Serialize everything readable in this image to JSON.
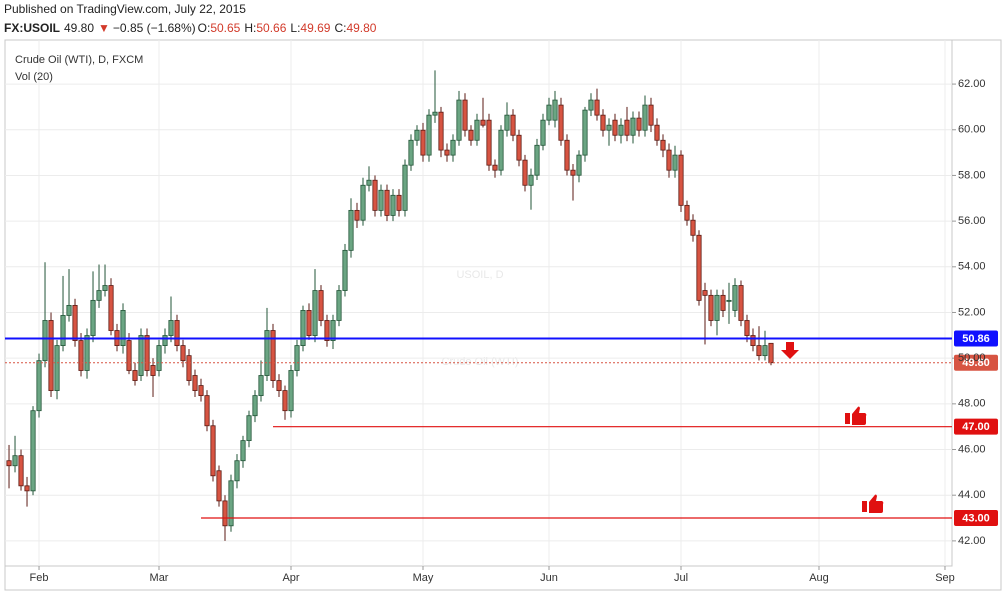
{
  "header": {
    "published": "Published on TradingView.com, July 22, 2015",
    "symbol": "FX:USOIL",
    "last": "49.80",
    "change": "−0.85 (−1.68%)",
    "ohlc": [
      {
        "key": "O:",
        "value": "50.65"
      },
      {
        "key": "H:",
        "value": "50.66"
      },
      {
        "key": "L:",
        "value": "49.69"
      },
      {
        "key": "C:",
        "value": "49.80"
      }
    ]
  },
  "chart_data": {
    "type": "candlestick",
    "title": "Crude Oil (WTI), D, FXCM",
    "subtitle": "Vol (20)",
    "watermark": [
      "USOIL, D",
      "Crude Oil (WTI)"
    ],
    "up_color": "#6ba583",
    "down_color": "#d75442",
    "grid": true,
    "xlim": [
      -0.67,
      157.17
    ],
    "ylim": [
      40.9,
      63.93
    ],
    "xticks": [
      {
        "value": 5,
        "label": "Feb"
      },
      {
        "value": 25,
        "label": "Mar"
      },
      {
        "value": 47,
        "label": "Apr"
      },
      {
        "value": 69,
        "label": "May"
      },
      {
        "value": 90,
        "label": "Jun"
      },
      {
        "value": 112,
        "label": "Jul"
      },
      {
        "value": 135,
        "label": "Aug"
      },
      {
        "value": 156,
        "label": "Sep"
      }
    ],
    "yticks": [
      {
        "value": 42,
        "label": "42.00"
      },
      {
        "value": 44,
        "label": "44.00"
      },
      {
        "value": 46,
        "label": "46.00"
      },
      {
        "value": 48,
        "label": "48.00"
      },
      {
        "value": 50,
        "label": "50.00"
      },
      {
        "value": 52,
        "label": "52.00"
      },
      {
        "value": 54,
        "label": "54.00"
      },
      {
        "value": 56,
        "label": "56.00"
      },
      {
        "value": 58,
        "label": "58.00"
      },
      {
        "value": 60,
        "label": "60.00"
      },
      {
        "value": 62,
        "label": "62.00"
      }
    ],
    "hlines": [
      {
        "value": 50.86,
        "label": "50.86",
        "color": "#1010ff",
        "style": "solid",
        "start": -0.67
      },
      {
        "value": 49.8,
        "label": "49.80",
        "color": "#d75442",
        "style": "dotted",
        "start": -0.67
      },
      {
        "value": 47,
        "label": "47.00",
        "color": "#e01010",
        "style": "solid",
        "start": 44
      },
      {
        "value": 43,
        "label": "43.00",
        "color": "#e01010",
        "style": "solid",
        "start": 32
      }
    ],
    "candles": [
      [
        45.51,
        46.2,
        44.3,
        45.29
      ],
      [
        45.29,
        46.6,
        45.0,
        45.73
      ],
      [
        45.73,
        46.0,
        44.2,
        44.41
      ],
      [
        44.41,
        44.8,
        43.5,
        44.19
      ],
      [
        44.19,
        47.9,
        44.0,
        47.7
      ],
      [
        47.7,
        50.2,
        47.4,
        49.89
      ],
      [
        49.89,
        54.2,
        49.6,
        51.65
      ],
      [
        51.65,
        52.0,
        48.3,
        48.58
      ],
      [
        48.58,
        50.8,
        48.2,
        50.55
      ],
      [
        50.55,
        53.6,
        50.3,
        51.87
      ],
      [
        51.87,
        53.9,
        51.6,
        52.31
      ],
      [
        52.31,
        52.6,
        50.5,
        50.77
      ],
      [
        50.77,
        51.1,
        49.2,
        49.46
      ],
      [
        49.46,
        51.3,
        49.1,
        50.99
      ],
      [
        50.99,
        53.8,
        50.7,
        52.53
      ],
      [
        52.53,
        54.1,
        52.2,
        52.96
      ],
      [
        52.96,
        54.1,
        52.7,
        53.18
      ],
      [
        53.18,
        53.5,
        51.0,
        51.21
      ],
      [
        51.21,
        51.5,
        50.3,
        50.55
      ],
      [
        50.55,
        52.4,
        50.2,
        52.09
      ],
      [
        50.77,
        51.1,
        49.3,
        49.46
      ],
      [
        49.46,
        49.8,
        48.8,
        49.02
      ],
      [
        49.24,
        51.3,
        49.0,
        50.99
      ],
      [
        50.99,
        51.3,
        49.2,
        49.46
      ],
      [
        49.68,
        50.0,
        48.3,
        49.24
      ],
      [
        49.46,
        50.8,
        49.2,
        50.55
      ],
      [
        50.55,
        51.3,
        50.2,
        50.99
      ],
      [
        50.99,
        52.7,
        50.7,
        51.65
      ],
      [
        51.65,
        51.9,
        50.3,
        50.55
      ],
      [
        50.55,
        50.8,
        49.6,
        49.89
      ],
      [
        50.11,
        50.4,
        48.8,
        49.02
      ],
      [
        49.24,
        49.5,
        48.3,
        48.58
      ],
      [
        48.8,
        49.1,
        48.1,
        48.36
      ],
      [
        48.36,
        48.6,
        46.8,
        47.04
      ],
      [
        47.04,
        47.3,
        44.6,
        44.85
      ],
      [
        45.07,
        45.3,
        43.5,
        43.75
      ],
      [
        43.75,
        44.0,
        42.0,
        42.66
      ],
      [
        42.66,
        44.9,
        42.4,
        44.63
      ],
      [
        44.63,
        45.8,
        44.3,
        45.51
      ],
      [
        45.51,
        46.6,
        45.2,
        46.39
      ],
      [
        46.39,
        47.7,
        46.1,
        47.48
      ],
      [
        47.48,
        48.6,
        47.2,
        48.36
      ],
      [
        48.36,
        49.9,
        48.1,
        49.24
      ],
      [
        49.24,
        52.2,
        49.0,
        51.21
      ],
      [
        51.21,
        51.5,
        48.7,
        49.02
      ],
      [
        49.02,
        49.3,
        48.3,
        48.58
      ],
      [
        48.58,
        48.8,
        47.3,
        47.7
      ],
      [
        47.7,
        49.7,
        47.4,
        49.46
      ],
      [
        49.46,
        50.8,
        49.2,
        50.55
      ],
      [
        50.55,
        52.3,
        50.3,
        52.09
      ],
      [
        52.09,
        52.4,
        50.8,
        50.99
      ],
      [
        50.99,
        53.9,
        50.7,
        52.96
      ],
      [
        52.96,
        53.2,
        51.4,
        51.65
      ],
      [
        51.65,
        51.9,
        50.5,
        50.77
      ],
      [
        50.77,
        51.9,
        50.4,
        51.65
      ],
      [
        51.65,
        53.2,
        51.4,
        52.96
      ],
      [
        52.96,
        55.0,
        52.7,
        54.72
      ],
      [
        54.72,
        57.0,
        54.4,
        56.47
      ],
      [
        56.47,
        56.8,
        55.7,
        56.04
      ],
      [
        56.04,
        57.9,
        55.8,
        57.57
      ],
      [
        57.57,
        58.4,
        57.3,
        57.79
      ],
      [
        57.79,
        58.0,
        56.2,
        56.47
      ],
      [
        56.47,
        57.6,
        56.2,
        57.35
      ],
      [
        57.35,
        57.6,
        56.0,
        56.25
      ],
      [
        56.25,
        57.4,
        56.0,
        57.13
      ],
      [
        57.13,
        57.4,
        56.2,
        56.47
      ],
      [
        56.47,
        58.7,
        56.2,
        58.45
      ],
      [
        58.45,
        59.8,
        58.2,
        59.54
      ],
      [
        59.54,
        60.2,
        59.3,
        59.98
      ],
      [
        59.98,
        60.3,
        58.6,
        58.89
      ],
      [
        58.89,
        60.9,
        58.6,
        60.64
      ],
      [
        60.64,
        62.6,
        60.3,
        60.77
      ],
      [
        60.77,
        61.0,
        58.8,
        59.11
      ],
      [
        59.11,
        59.4,
        58.6,
        58.89
      ],
      [
        58.89,
        59.8,
        58.6,
        59.54
      ],
      [
        59.54,
        61.7,
        59.3,
        61.3
      ],
      [
        61.3,
        61.6,
        59.7,
        59.98
      ],
      [
        59.98,
        60.2,
        59.3,
        59.54
      ],
      [
        59.54,
        60.7,
        59.3,
        60.42
      ],
      [
        60.42,
        61.4,
        60.1,
        60.2
      ],
      [
        60.42,
        60.7,
        58.2,
        58.45
      ],
      [
        58.45,
        58.7,
        57.9,
        58.23
      ],
      [
        58.23,
        60.2,
        58.0,
        59.98
      ],
      [
        59.98,
        61.2,
        59.7,
        60.64
      ],
      [
        60.64,
        60.9,
        59.5,
        59.76
      ],
      [
        59.76,
        60.0,
        58.4,
        58.67
      ],
      [
        58.67,
        58.9,
        57.3,
        57.57
      ],
      [
        57.57,
        58.3,
        56.5,
        58.01
      ],
      [
        58.01,
        59.6,
        57.8,
        59.32
      ],
      [
        59.32,
        60.7,
        59.1,
        60.42
      ],
      [
        60.42,
        61.4,
        60.2,
        61.08
      ],
      [
        60.42,
        61.7,
        60.1,
        61.3
      ],
      [
        61.08,
        61.4,
        59.3,
        59.54
      ],
      [
        59.54,
        59.8,
        58.0,
        58.23
      ],
      [
        58.23,
        58.5,
        56.9,
        58.01
      ],
      [
        58.01,
        59.1,
        57.7,
        58.89
      ],
      [
        58.89,
        61.0,
        58.6,
        60.86
      ],
      [
        60.86,
        61.6,
        60.6,
        61.3
      ],
      [
        61.3,
        61.8,
        60.4,
        60.64
      ],
      [
        60.64,
        60.9,
        59.7,
        59.98
      ],
      [
        59.98,
        60.5,
        59.3,
        60.2
      ],
      [
        60.42,
        60.7,
        59.5,
        59.76
      ],
      [
        59.76,
        60.5,
        59.4,
        60.2
      ],
      [
        60.42,
        61.0,
        59.5,
        59.76
      ],
      [
        59.76,
        60.8,
        59.4,
        60.51
      ],
      [
        60.51,
        60.8,
        59.7,
        59.98
      ],
      [
        59.98,
        61.5,
        59.7,
        61.08
      ],
      [
        61.08,
        61.4,
        59.9,
        60.2
      ],
      [
        60.2,
        60.5,
        59.3,
        59.54
      ],
      [
        59.54,
        59.8,
        58.8,
        59.11
      ],
      [
        59.11,
        59.4,
        57.9,
        58.23
      ],
      [
        58.23,
        59.3,
        57.9,
        58.89
      ],
      [
        58.89,
        59.1,
        56.4,
        56.69
      ],
      [
        56.69,
        56.9,
        55.8,
        56.04
      ],
      [
        56.04,
        56.3,
        55.1,
        55.38
      ],
      [
        55.38,
        55.6,
        52.3,
        52.53
      ],
      [
        52.96,
        53.3,
        50.6,
        52.75
      ],
      [
        52.75,
        53.0,
        51.4,
        51.65
      ],
      [
        51.65,
        53.0,
        51.0,
        52.75
      ],
      [
        52.75,
        53.0,
        51.8,
        52.09
      ],
      [
        52.53,
        53.3,
        51.5,
        52.53
      ],
      [
        52.09,
        53.5,
        51.8,
        53.18
      ],
      [
        53.18,
        53.4,
        51.4,
        51.65
      ],
      [
        51.65,
        51.9,
        50.7,
        50.99
      ],
      [
        50.99,
        51.3,
        50.3,
        50.55
      ],
      [
        50.55,
        51.4,
        49.9,
        50.11
      ],
      [
        50.11,
        51.2,
        49.9,
        50.55
      ],
      [
        50.65,
        50.66,
        49.69,
        49.8
      ]
    ]
  }
}
